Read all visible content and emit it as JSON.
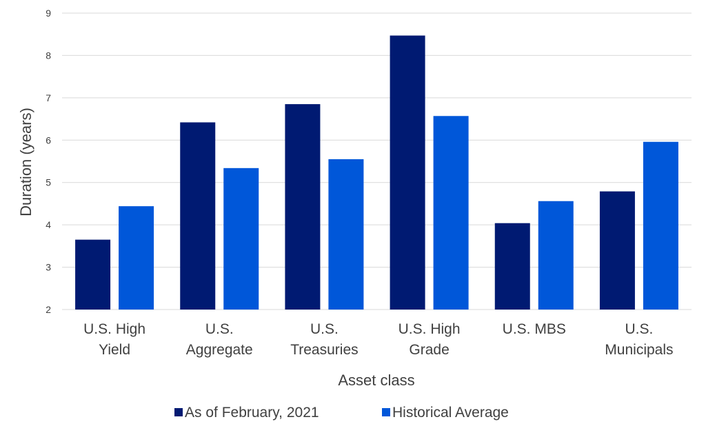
{
  "chart_data": {
    "type": "bar",
    "title": "",
    "xlabel": "Asset class",
    "ylabel": "Duration (years)",
    "ylim": [
      2,
      9
    ],
    "yticks": [
      "2",
      "3",
      "4",
      "5",
      "6",
      "7",
      "8",
      "9"
    ],
    "grid": true,
    "legend_position": "bottom",
    "categories": [
      [
        "U.S. High",
        "Yield"
      ],
      [
        "U.S.",
        "Aggregate"
      ],
      [
        "U.S.",
        "Treasuries"
      ],
      [
        "U.S. High",
        "Grade"
      ],
      [
        "U.S. MBS"
      ],
      [
        "U.S.",
        "Municipals"
      ]
    ],
    "series": [
      {
        "name": "As of February, 2021",
        "color": "#001a72",
        "values": [
          3.65,
          6.42,
          6.85,
          8.47,
          4.04,
          4.79
        ]
      },
      {
        "name": "Historical Average",
        "color": "#0057d9",
        "values": [
          4.44,
          5.34,
          5.55,
          6.57,
          4.56,
          5.96
        ]
      }
    ]
  }
}
